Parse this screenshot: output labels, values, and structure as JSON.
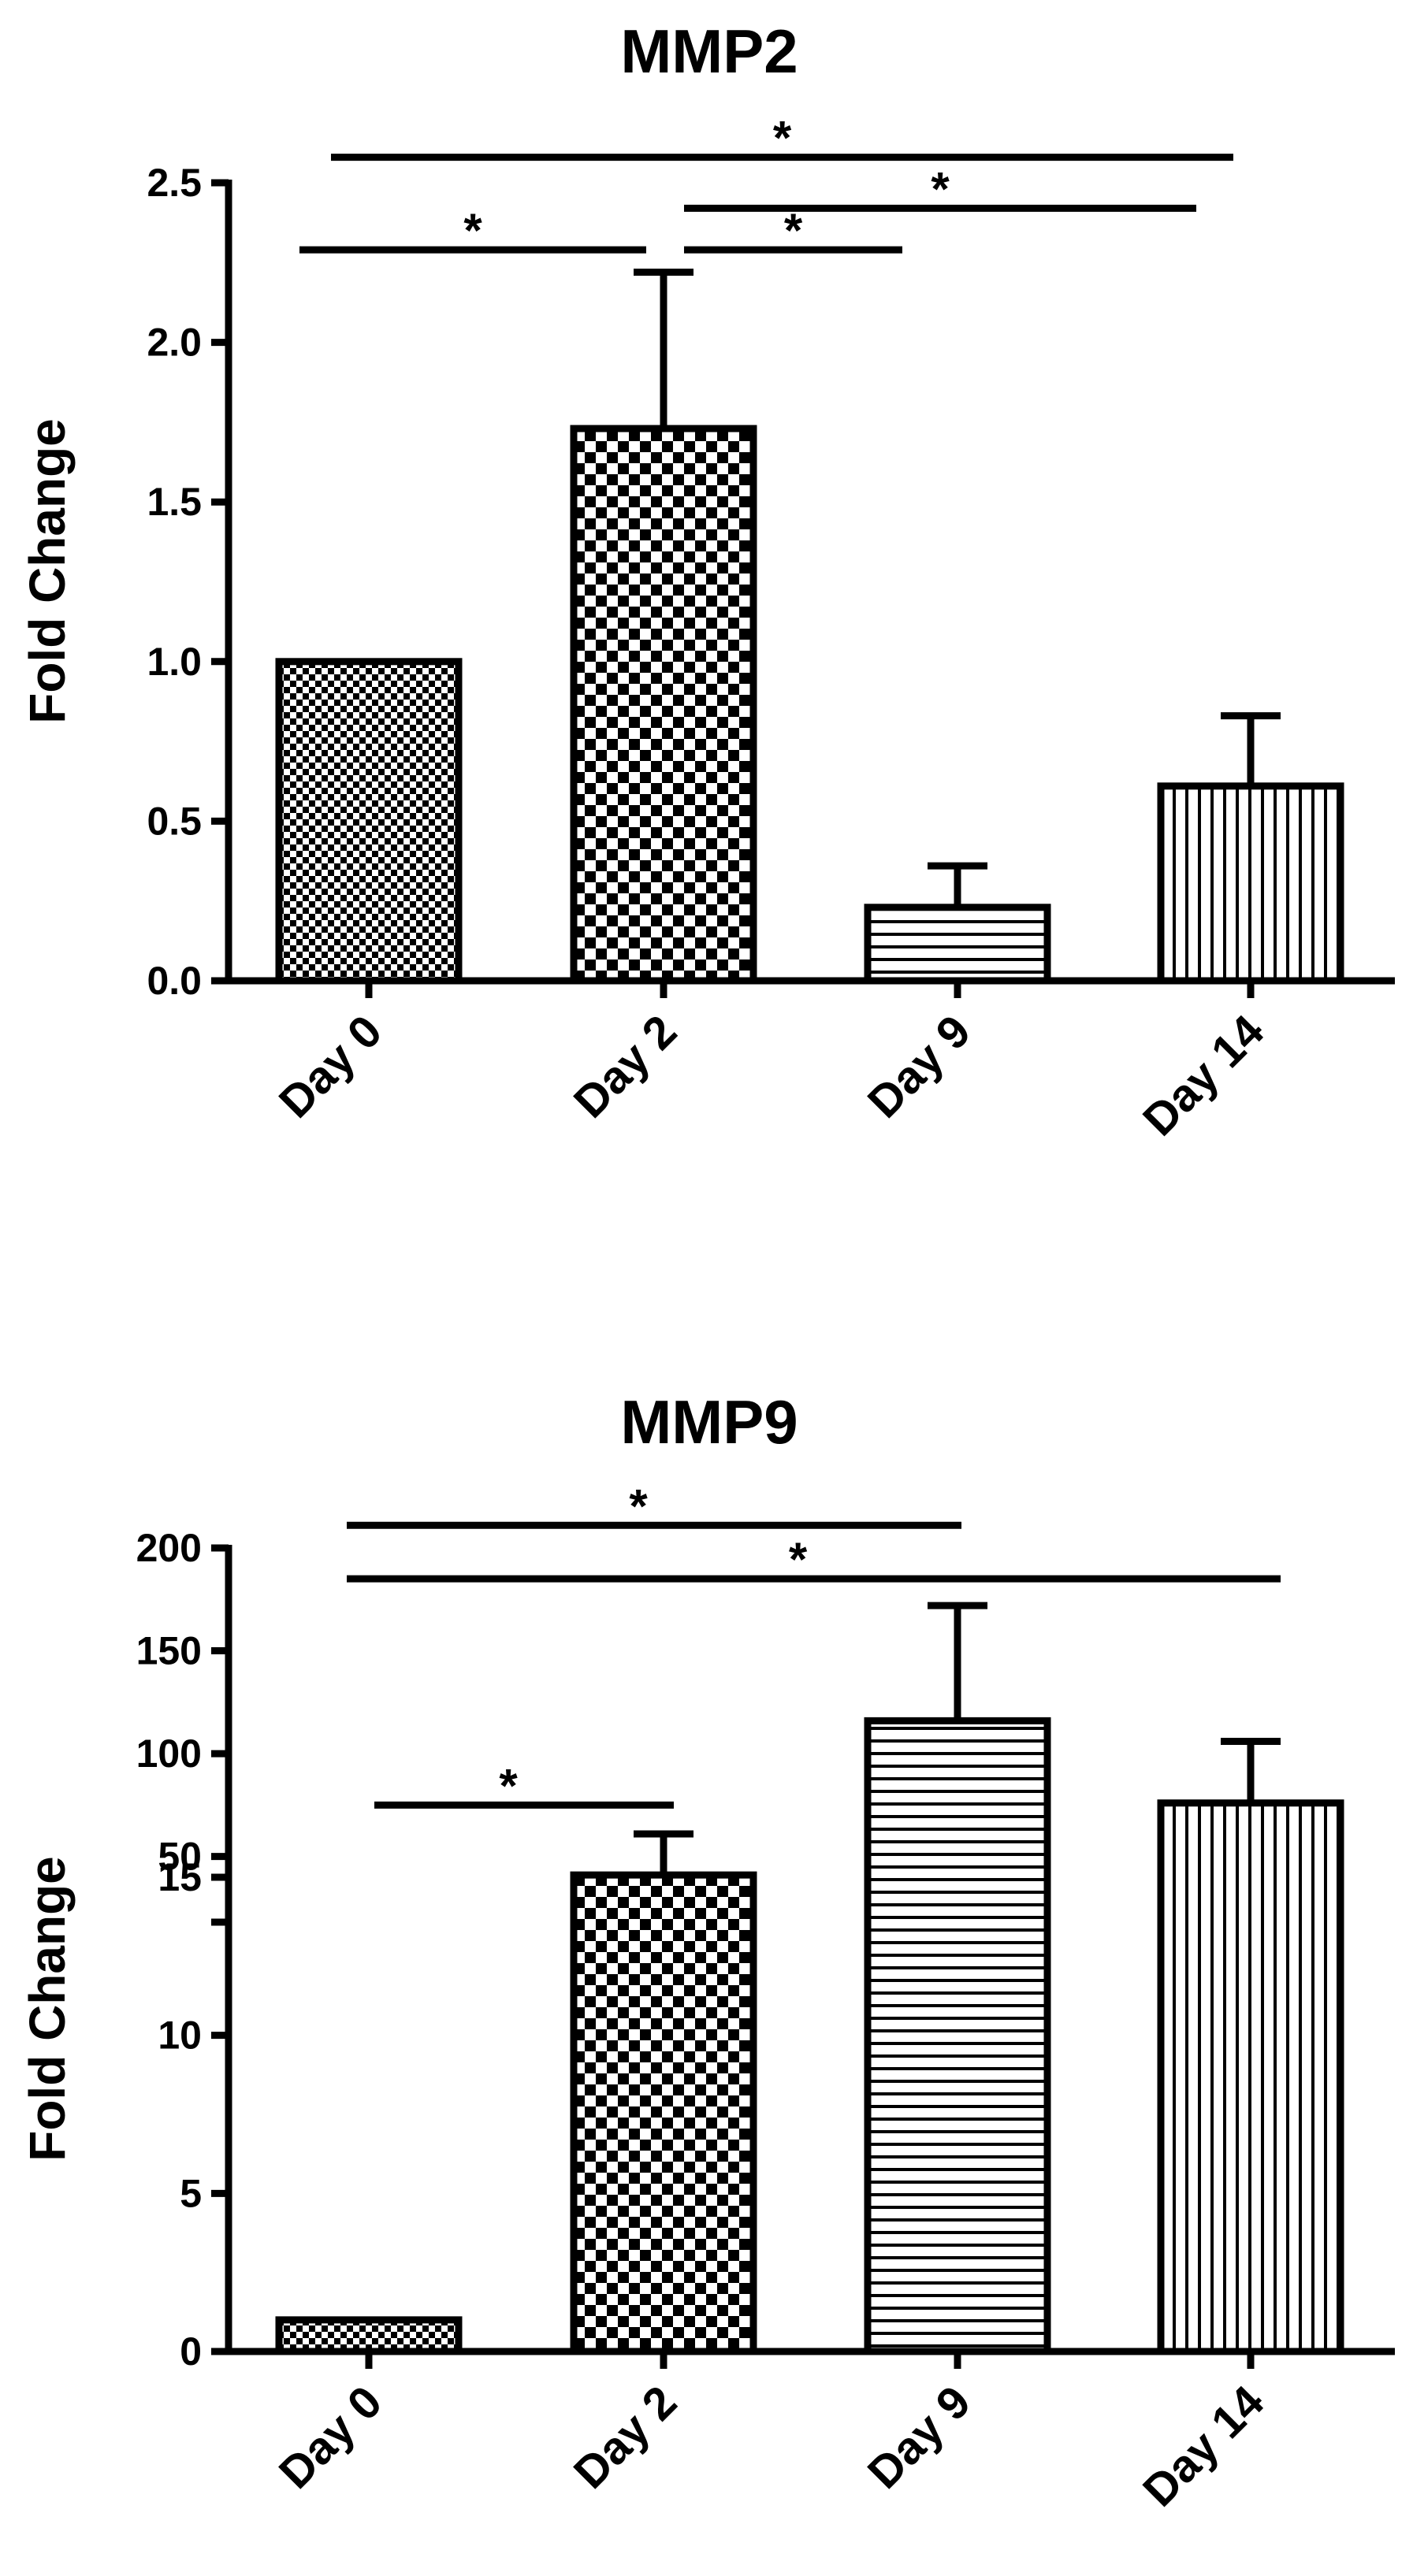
{
  "chart_data": [
    {
      "type": "bar",
      "title": "MMP2",
      "xlabel": "",
      "ylabel": "Fold Change",
      "categories": [
        "Day 0",
        "Day 2",
        "Day 9",
        "Day 14"
      ],
      "values": [
        1.0,
        1.73,
        0.23,
        0.61
      ],
      "error": [
        0.0,
        0.49,
        0.13,
        0.22
      ],
      "patterns": [
        "fine-check",
        "check",
        "horizontal-lines",
        "vertical-lines"
      ],
      "ylim": [
        0,
        2.5
      ],
      "yticks": [
        0.0,
        0.5,
        1.0,
        1.5,
        2.0,
        2.5
      ],
      "ytick_labels": [
        "0.0",
        "0.5",
        "1.0",
        "1.5",
        "2.0",
        "2.5"
      ],
      "significance": [
        {
          "from": 0,
          "to": 3,
          "label": "*",
          "y": 2.58
        },
        {
          "from": 1,
          "to": 3,
          "label": "*",
          "y": 2.42
        },
        {
          "from": 0,
          "to": 1,
          "label": "*",
          "y": 2.29
        },
        {
          "from": 1,
          "to": 2,
          "label": "*",
          "y": 2.29
        }
      ]
    },
    {
      "type": "bar",
      "title": "MMP9",
      "xlabel": "",
      "ylabel": "Fold Change",
      "categories": [
        "Day 0",
        "Day 2",
        "Day 9",
        "Day 14"
      ],
      "values": [
        1,
        41,
        116,
        76
      ],
      "error": [
        0,
        20,
        56,
        30
      ],
      "patterns": [
        "fine-check",
        "check",
        "horizontal-lines",
        "vertical-lines"
      ],
      "y_broken": true,
      "ylim_lower": [
        0,
        15
      ],
      "yticks_lower": [
        0,
        5,
        10,
        15
      ],
      "ylim_upper": [
        20,
        200
      ],
      "yticks_upper": [
        50,
        100,
        150,
        200
      ],
      "significance": [
        {
          "from": 0,
          "to": 2,
          "label": "*",
          "y": 211
        },
        {
          "from": 0,
          "to": 3,
          "label": "*",
          "y": 185
        },
        {
          "from": 0,
          "to": 1,
          "label": "*",
          "y": 75
        }
      ]
    }
  ]
}
